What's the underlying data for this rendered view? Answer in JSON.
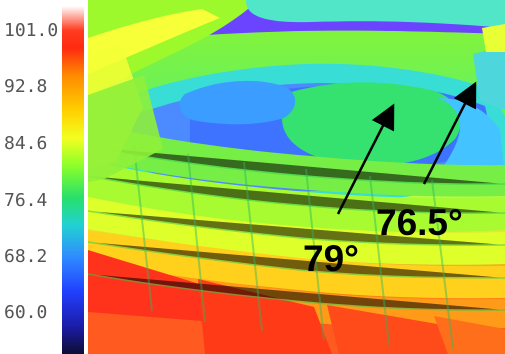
{
  "scale": {
    "labels": [
      "101.0",
      "92.8",
      "84.6",
      "76.4",
      "68.2",
      "60.0"
    ]
  },
  "annotations": {
    "left_temp": "79°",
    "right_temp": "76.5°"
  },
  "colors": {
    "arrow": "#000000",
    "text": "#000000",
    "scale_text": "#555555"
  }
}
